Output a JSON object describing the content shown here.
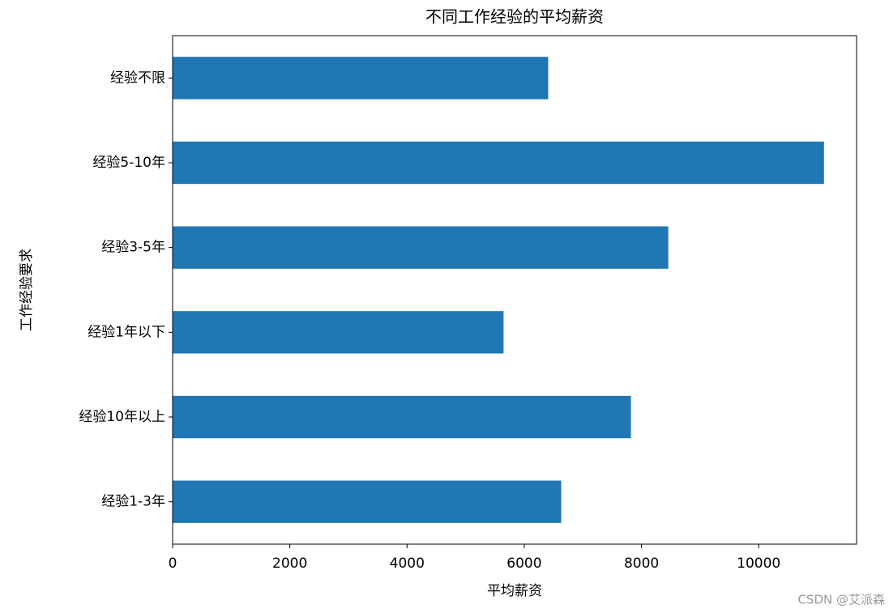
{
  "chart_data": {
    "type": "barh",
    "title": "不同工作经验的平均薪资",
    "x_label": "平均薪资",
    "y_label": "工作经验要求",
    "categories": [
      "经验不限",
      "经验5-10年",
      "经验3-5年",
      "经验1年以下",
      "经验10年以上",
      "经验1-3年"
    ],
    "values": [
      6408,
      11114,
      8457,
      5647,
      7820,
      6630
    ],
    "color": "#1f77b4",
    "xlim": [
      0,
      11670
    ],
    "xticks": [
      0,
      2000,
      4000,
      6000,
      8000,
      10000
    ],
    "grid": false
  },
  "watermark": "CSDN @艾派森"
}
